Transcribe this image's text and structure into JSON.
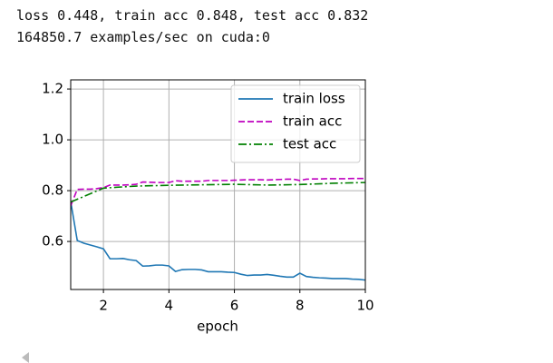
{
  "output_text": [
    "loss 0.448, train acc 0.848, test acc 0.832",
    "164850.7 examples/sec on cuda:0"
  ],
  "chart_data": {
    "type": "line",
    "xlabel": "epoch",
    "x": [
      1,
      1.2,
      1.4,
      1.6,
      1.8,
      2,
      2.2,
      2.4,
      2.6,
      2.8,
      3,
      3.2,
      3.4,
      3.6,
      3.8,
      4,
      4.2,
      4.4,
      4.6,
      4.8,
      5,
      5.2,
      5.4,
      5.6,
      5.8,
      6,
      6.2,
      6.4,
      6.6,
      6.8,
      7,
      7.2,
      7.4,
      7.6,
      7.8,
      8,
      8.2,
      8.4,
      8.6,
      8.8,
      9,
      9.2,
      9.4,
      9.6,
      9.8,
      10
    ],
    "series": [
      {
        "name": "train loss",
        "color": "#1f77b4",
        "linestyle": "solid",
        "values": [
          0.757,
          0.604,
          0.593,
          0.586,
          0.579,
          0.571,
          0.532,
          0.532,
          0.533,
          0.528,
          0.525,
          0.503,
          0.504,
          0.507,
          0.507,
          0.504,
          0.482,
          0.489,
          0.49,
          0.49,
          0.488,
          0.481,
          0.481,
          0.481,
          0.479,
          0.478,
          0.471,
          0.466,
          0.468,
          0.468,
          0.47,
          0.467,
          0.463,
          0.46,
          0.46,
          0.475,
          0.462,
          0.459,
          0.457,
          0.456,
          0.454,
          0.454,
          0.454,
          0.452,
          0.451,
          0.448
        ]
      },
      {
        "name": "train acc",
        "color": "#bf00bf",
        "linestyle": "dashed",
        "values": [
          0.74,
          0.805,
          0.806,
          0.806,
          0.808,
          0.812,
          0.822,
          0.822,
          0.822,
          0.823,
          0.825,
          0.834,
          0.833,
          0.832,
          0.832,
          0.832,
          0.839,
          0.837,
          0.837,
          0.837,
          0.837,
          0.84,
          0.84,
          0.84,
          0.84,
          0.841,
          0.842,
          0.843,
          0.843,
          0.843,
          0.842,
          0.843,
          0.844,
          0.845,
          0.845,
          0.84,
          0.845,
          0.846,
          0.846,
          0.847,
          0.847,
          0.847,
          0.847,
          0.848,
          0.848,
          0.848
        ]
      },
      {
        "name": "test acc",
        "color": "#008000",
        "linestyle": "dashdot",
        "x": [
          1,
          2,
          3,
          4,
          5,
          6,
          7,
          8,
          9,
          10
        ],
        "values": [
          0.755,
          0.81,
          0.818,
          0.821,
          0.823,
          0.825,
          0.822,
          0.824,
          0.829,
          0.832
        ]
      }
    ],
    "xlim": [
      1,
      10
    ],
    "xticks": [
      2,
      4,
      6,
      8,
      10
    ],
    "ylim": [
      0.411,
      1.236
    ],
    "yticks": [
      0.6,
      0.8,
      {
        "value": 1,
        "label": "1.0"
      },
      1.2
    ],
    "grid": true,
    "legend": "upper right"
  }
}
